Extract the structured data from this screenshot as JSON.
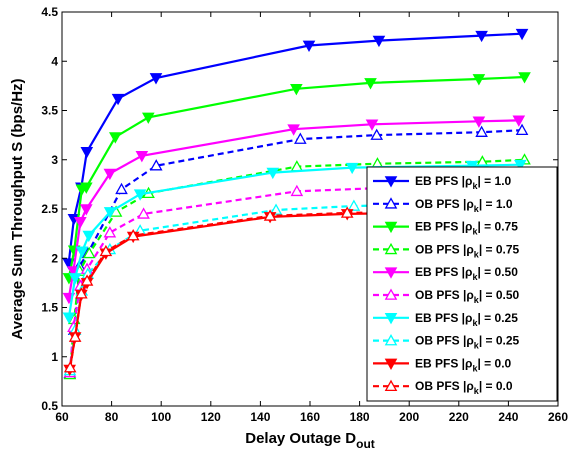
{
  "chart_data": {
    "type": "line",
    "title": "",
    "xlabel": "Delay Outage D",
    "xlabel_sub": "out",
    "ylabel": "Average Sum Throughput S (bps/Hz)",
    "xlim": [
      60,
      260
    ],
    "ylim": [
      0.5,
      4.5
    ],
    "xticks": [
      "60",
      "80",
      "100",
      "120",
      "140",
      "160",
      "180",
      "200",
      "220",
      "240",
      "260"
    ],
    "yticks": [
      "0.5",
      "1",
      "1.5",
      "2",
      "2.5",
      "3",
      "3.5",
      "4",
      "4.5"
    ],
    "grid": false,
    "legend_position": "right-bottom",
    "series": [
      {
        "name": "EB PFS |ρk| = 1.0",
        "label_main": "EB PFS |ρ",
        "label_sub": "k",
        "label_end": "| = 1.0",
        "color": "#0000ff",
        "style": "solid",
        "marker": "triangle-down",
        "points": [
          [
            62.7,
            1.95
          ],
          [
            64.8,
            2.4
          ],
          [
            67.8,
            2.72
          ],
          [
            70.0,
            3.08
          ],
          [
            82.6,
            3.62
          ],
          [
            97.9,
            3.83
          ],
          [
            159.6,
            4.16
          ],
          [
            187.8,
            4.21
          ],
          [
            229.2,
            4.26
          ],
          [
            245.5,
            4.28
          ]
        ]
      },
      {
        "name": "OB PFS |ρk| = 1.0",
        "label_main": "OB PFS |ρ",
        "label_sub": "k",
        "label_end": "| = 1.0",
        "color": "#0000ff",
        "style": "dashed",
        "marker": "triangle-up",
        "points": [
          [
            63.1,
            0.83
          ],
          [
            64.9,
            1.27
          ],
          [
            67.0,
            1.92
          ],
          [
            70.4,
            2.05
          ],
          [
            84.0,
            2.7
          ],
          [
            98.0,
            2.94
          ],
          [
            156.1,
            3.21
          ],
          [
            186.9,
            3.25
          ],
          [
            229.2,
            3.28
          ],
          [
            245.5,
            3.3
          ]
        ]
      },
      {
        "name": "EB PFS |ρk| = 0.75",
        "label_main": "EB PFS |ρ",
        "label_sub": "k",
        "label_end": "| = 0.75",
        "color": "#00ff00",
        "style": "solid",
        "marker": "triangle-down",
        "points": [
          [
            62.8,
            1.8
          ],
          [
            64.9,
            2.08
          ],
          [
            68.0,
            2.7
          ],
          [
            69.8,
            2.72
          ],
          [
            81.5,
            3.23
          ],
          [
            94.8,
            3.43
          ],
          [
            154.5,
            3.72
          ],
          [
            184.4,
            3.78
          ],
          [
            228.1,
            3.82
          ],
          [
            246.5,
            3.84
          ]
        ]
      },
      {
        "name": "OB PFS |ρk| = 0.75",
        "label_main": "OB PFS |ρ",
        "label_sub": "k",
        "label_end": "| = 0.75",
        "color": "#00ff00",
        "style": "dashed",
        "marker": "triangle-up",
        "points": [
          [
            63.2,
            0.82
          ],
          [
            64.9,
            1.38
          ],
          [
            67.1,
            1.87
          ],
          [
            71.0,
            2.05
          ],
          [
            81.8,
            2.47
          ],
          [
            94.9,
            2.66
          ],
          [
            154.7,
            2.93
          ],
          [
            187.2,
            2.96
          ],
          [
            229.5,
            2.98
          ],
          [
            246.5,
            3.0
          ]
        ]
      },
      {
        "name": "EB PFS |ρk| = 0.50",
        "label_main": "EB PFS |ρ",
        "label_sub": "k",
        "label_end": "| = 0.50",
        "color": "#ff00ff",
        "style": "solid",
        "marker": "triangle-down",
        "points": [
          [
            62.8,
            1.6
          ],
          [
            64.6,
            1.87
          ],
          [
            67.4,
            2.37
          ],
          [
            69.8,
            2.5
          ],
          [
            79.3,
            2.86
          ],
          [
            92.2,
            3.04
          ],
          [
            153.4,
            3.31
          ],
          [
            185.0,
            3.36
          ],
          [
            228.1,
            3.39
          ],
          [
            244.2,
            3.4
          ]
        ]
      },
      {
        "name": "OB PFS |ρk| = 0.50",
        "label_main": "OB PFS |ρ",
        "label_sub": "k",
        "label_end": "| = 0.50",
        "color": "#ff00ff",
        "style": "dashed",
        "marker": "triangle-up",
        "points": [
          [
            63.2,
            0.84
          ],
          [
            64.6,
            1.3
          ],
          [
            67.4,
            1.72
          ],
          [
            70.1,
            1.89
          ],
          [
            79.3,
            2.26
          ],
          [
            92.9,
            2.45
          ],
          [
            154.7,
            2.68
          ],
          [
            185.6,
            2.71
          ],
          [
            228.6,
            2.72
          ],
          [
            244.2,
            2.75
          ]
        ]
      },
      {
        "name": "EB PFS |ρk| = 0.25",
        "label_main": "EB PFS |ρ",
        "label_sub": "k",
        "label_end": "| = 0.25",
        "color": "#00ffff",
        "style": "solid",
        "marker": "triangle-down",
        "points": [
          [
            62.8,
            1.4
          ],
          [
            65.3,
            1.8
          ],
          [
            68.1,
            2.07
          ],
          [
            70.8,
            2.23
          ],
          [
            79.4,
            2.47
          ],
          [
            91.5,
            2.65
          ],
          [
            145.0,
            2.87
          ],
          [
            177.0,
            2.92
          ],
          [
            225.3,
            2.94
          ],
          [
            244.8,
            2.95
          ]
        ]
      },
      {
        "name": "OB PFS |ρk| = 0.25",
        "label_main": "OB PFS |ρ",
        "label_sub": "k",
        "label_end": "| = 0.25",
        "color": "#00ffff",
        "style": "dashed",
        "marker": "triangle-up",
        "points": [
          [
            63.2,
            0.86
          ],
          [
            65.3,
            1.27
          ],
          [
            68.0,
            1.67
          ],
          [
            70.4,
            1.84
          ],
          [
            79.3,
            2.09
          ],
          [
            91.5,
            2.28
          ],
          [
            146.3,
            2.49
          ],
          [
            177.7,
            2.53
          ],
          [
            225.5,
            2.55
          ],
          [
            244.8,
            2.57
          ]
        ]
      },
      {
        "name": "EB PFS |ρk| = 0.0",
        "label_main": "EB PFS |ρ",
        "label_sub": "k",
        "label_end": "| = 0.0",
        "color": "#ff0000",
        "style": "solid",
        "marker": "triangle-down",
        "points": [
          [
            63.1,
            0.87
          ],
          [
            65.3,
            1.2
          ],
          [
            67.8,
            1.63
          ],
          [
            70.1,
            1.75
          ],
          [
            77.7,
            2.05
          ],
          [
            88.7,
            2.22
          ],
          [
            143.9,
            2.42
          ],
          [
            175.0,
            2.45
          ],
          [
            225.5,
            2.47
          ],
          [
            243.6,
            2.48
          ]
        ]
      },
      {
        "name": "OB PFS |ρk| = 0.0",
        "label_main": "OB PFS |ρ",
        "label_sub": "k",
        "label_end": "| = 0.0",
        "color": "#ff0000",
        "style": "dashed",
        "marker": "triangle-up",
        "points": [
          [
            63.3,
            0.89
          ],
          [
            65.3,
            1.2
          ],
          [
            67.8,
            1.64
          ],
          [
            70.1,
            1.77
          ],
          [
            77.7,
            2.07
          ],
          [
            88.7,
            2.23
          ],
          [
            143.9,
            2.43
          ],
          [
            175.0,
            2.46
          ],
          [
            225.5,
            2.48
          ],
          [
            243.6,
            2.49
          ]
        ]
      }
    ]
  }
}
